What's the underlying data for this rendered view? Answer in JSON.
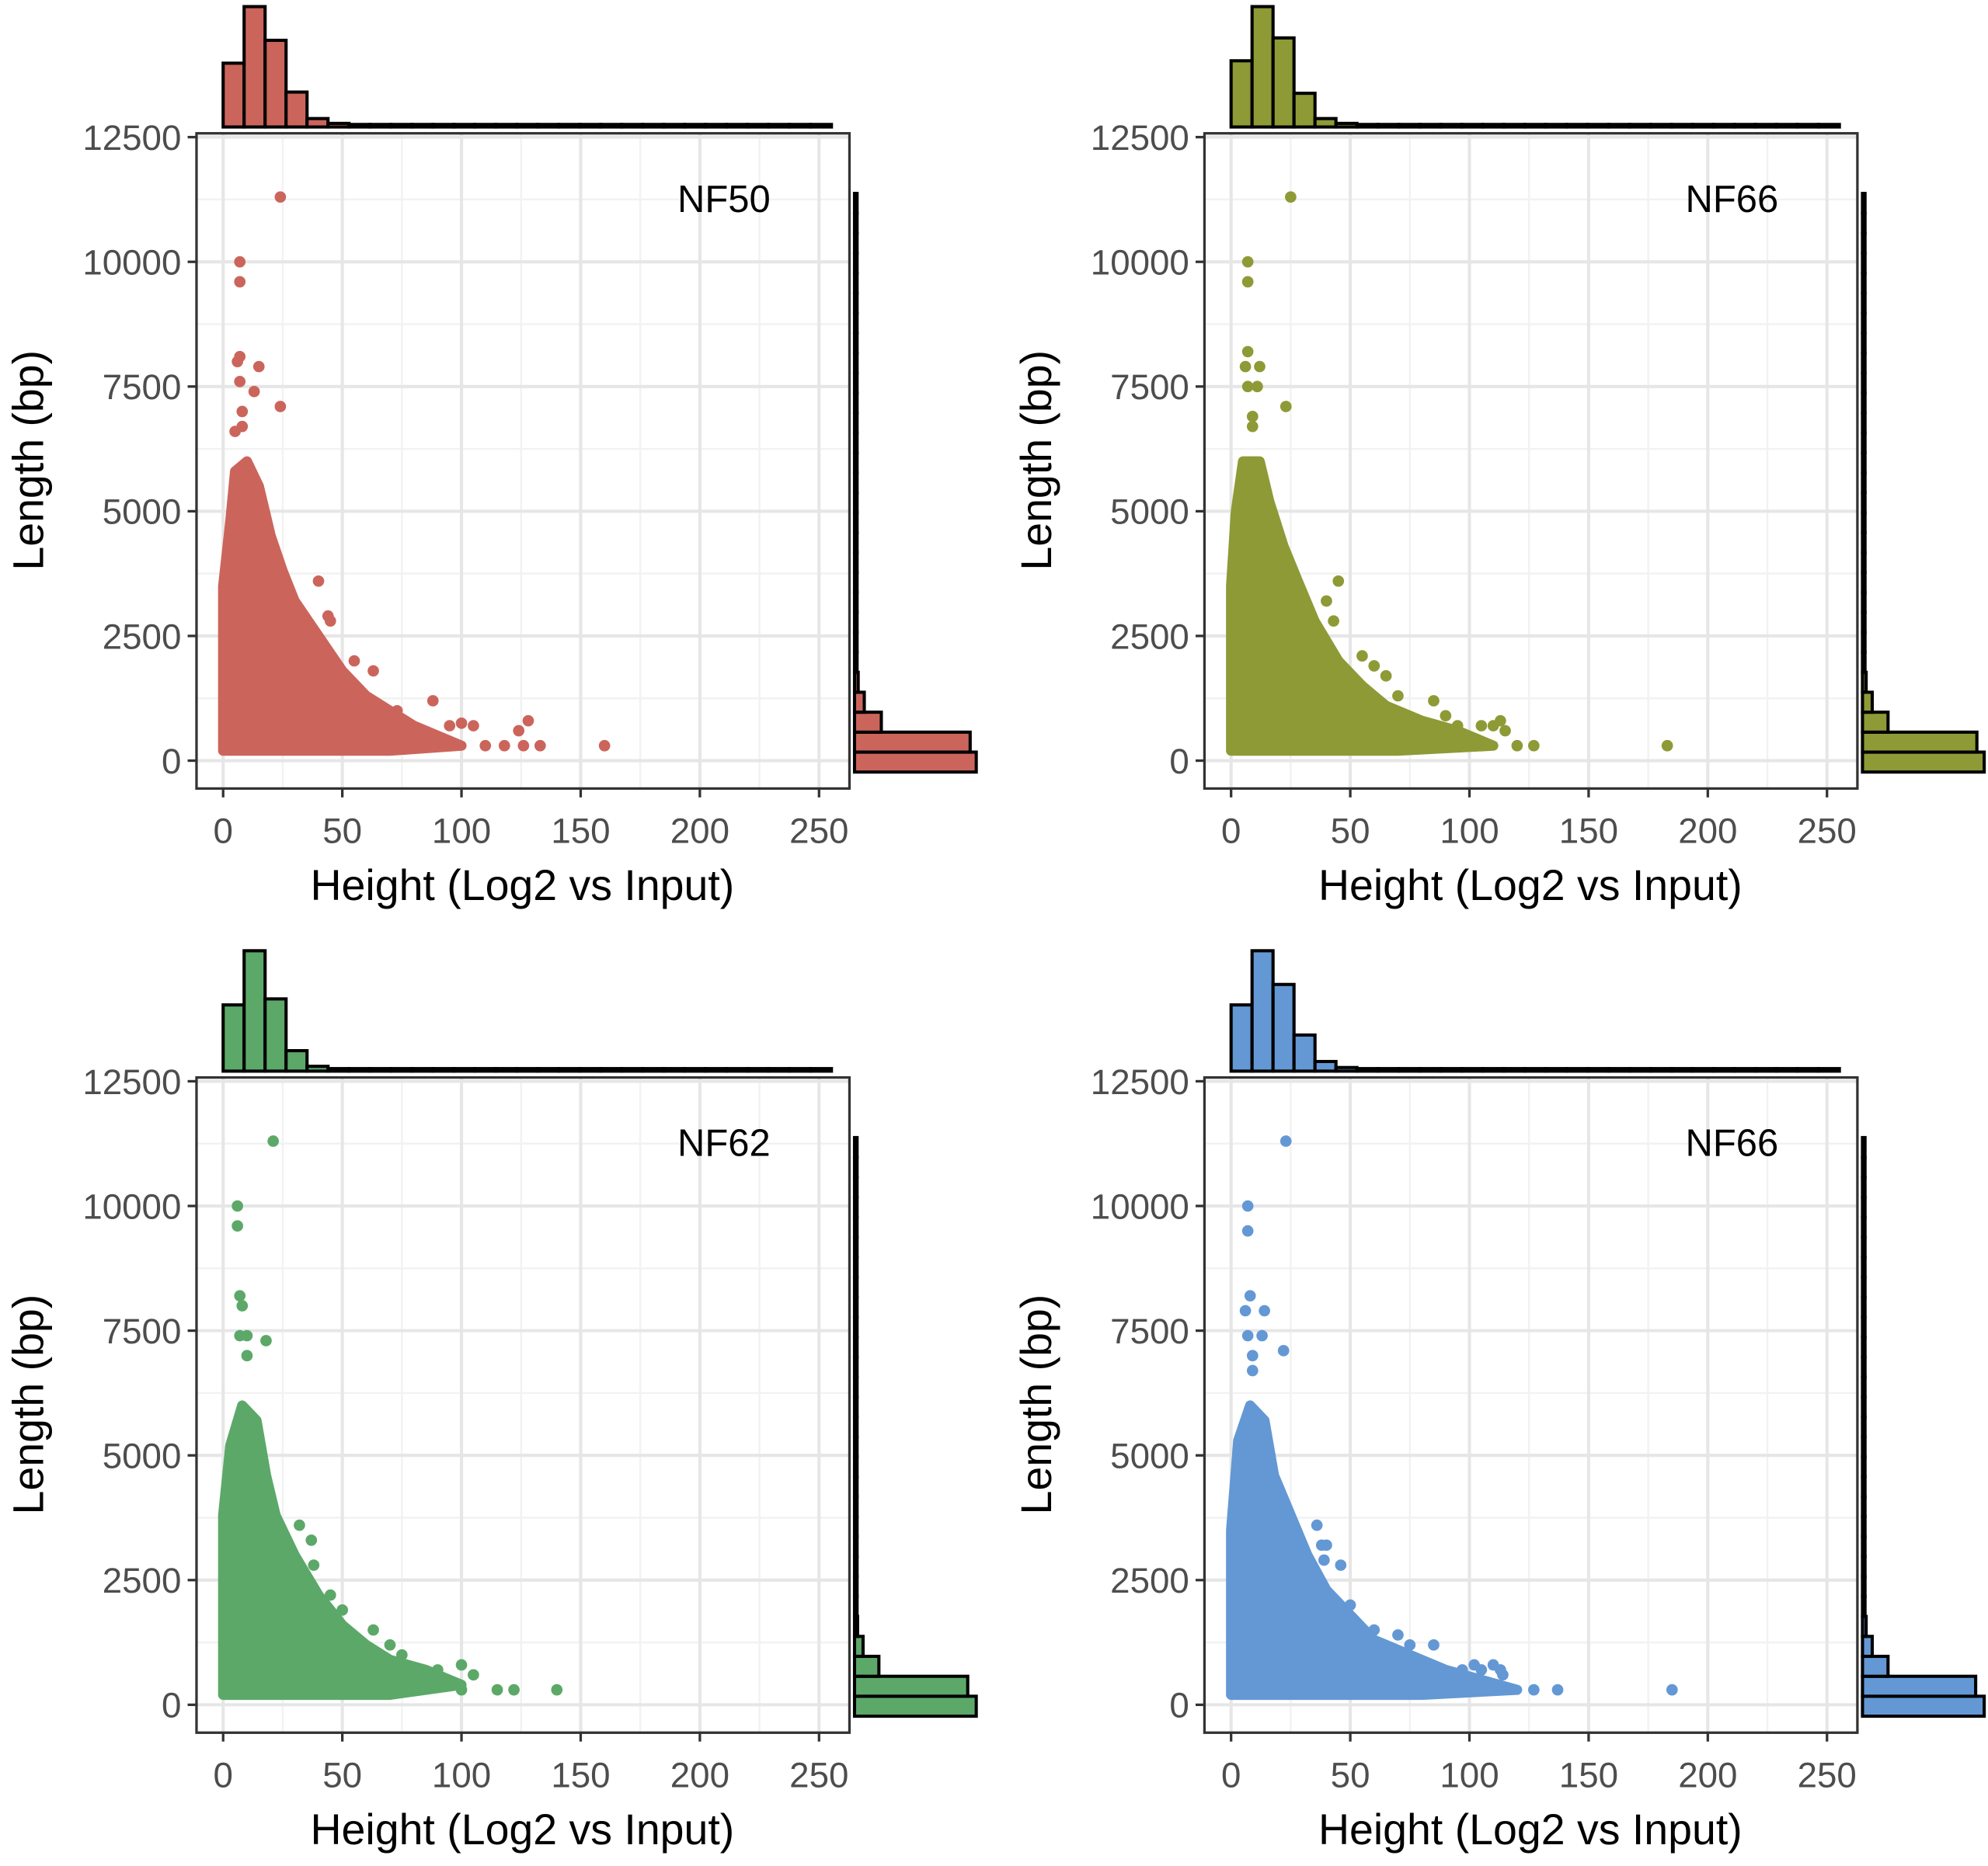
{
  "chart_data": [
    {
      "type": "scatter",
      "panel_label": "NF50",
      "color": "#CB655C",
      "xlabel": "Height (Log2 vs Input)",
      "ylabel": "Length (bp)",
      "xlim": [
        0,
        250
      ],
      "ylim": [
        0,
        12500
      ],
      "xticks": [
        "0",
        "50",
        "100",
        "150",
        "200",
        "250"
      ],
      "yticks": [
        "0",
        "2500",
        "5000",
        "7500",
        "10000",
        "12500"
      ],
      "grid": true,
      "dense_cloud": [
        [
          0,
          200
        ],
        [
          0,
          3500
        ],
        [
          3,
          4800
        ],
        [
          5,
          5800
        ],
        [
          10,
          6000
        ],
        [
          15,
          5500
        ],
        [
          20,
          4500
        ],
        [
          25,
          3800
        ],
        [
          30,
          3200
        ],
        [
          40,
          2500
        ],
        [
          50,
          1800
        ],
        [
          60,
          1300
        ],
        [
          70,
          1000
        ],
        [
          80,
          700
        ],
        [
          90,
          500
        ],
        [
          100,
          300
        ],
        [
          70,
          200
        ]
      ],
      "points": [
        [
          24,
          11300
        ],
        [
          7,
          10000
        ],
        [
          7,
          9600
        ],
        [
          7,
          8100
        ],
        [
          6,
          8000
        ],
        [
          15,
          7900
        ],
        [
          7,
          7600
        ],
        [
          13,
          7400
        ],
        [
          24,
          7100
        ],
        [
          8,
          7000
        ],
        [
          8,
          6700
        ],
        [
          5,
          6600
        ],
        [
          40,
          3600
        ],
        [
          44,
          2900
        ],
        [
          45,
          2800
        ],
        [
          38,
          2200
        ],
        [
          55,
          2000
        ],
        [
          63,
          1800
        ],
        [
          88,
          1200
        ],
        [
          73,
          1000
        ],
        [
          95,
          700
        ],
        [
          100,
          750
        ],
        [
          105,
          700
        ],
        [
          128,
          800
        ],
        [
          124,
          600
        ],
        [
          110,
          300
        ],
        [
          118,
          300
        ],
        [
          126,
          300
        ],
        [
          133,
          300
        ],
        [
          160,
          300
        ]
      ],
      "top_histogram": [
        0.53,
        1,
        0.72,
        0.29,
        0.07,
        0.03,
        0.015,
        0.01,
        0.01,
        0.01,
        0.005,
        0.005,
        0.005,
        0.005,
        0.005,
        0.005,
        0.005,
        0.005,
        0.005,
        0.005,
        0.005,
        0.005,
        0.005,
        0.005,
        0.005,
        0.005,
        0.005,
        0.005,
        0.005
      ],
      "right_histogram": [
        1,
        0.95,
        0.22,
        0.08,
        0.03,
        0.015,
        0.01,
        0.01,
        0.008,
        0.006,
        0.005,
        0.005,
        0.005,
        0.005,
        0.005,
        0.005,
        0.005,
        0.005,
        0.005,
        0.005,
        0.005,
        0.005,
        0.005,
        0.005,
        0.005,
        0.005,
        0.005,
        0.005,
        0.005
      ]
    },
    {
      "type": "scatter",
      "panel_label": "NF66",
      "color": "#8E9A36",
      "xlabel": "Height (Log2 vs Input)",
      "ylabel": "Length (bp)",
      "xlim": [
        0,
        250
      ],
      "ylim": [
        0,
        12500
      ],
      "xticks": [
        "0",
        "50",
        "100",
        "150",
        "200",
        "250"
      ],
      "yticks": [
        "0",
        "2500",
        "5000",
        "7500",
        "10000",
        "12500"
      ],
      "grid": true,
      "dense_cloud": [
        [
          0,
          200
        ],
        [
          0,
          3500
        ],
        [
          2,
          5000
        ],
        [
          5,
          6000
        ],
        [
          12,
          6000
        ],
        [
          16,
          5200
        ],
        [
          22,
          4300
        ],
        [
          28,
          3600
        ],
        [
          35,
          2800
        ],
        [
          45,
          2000
        ],
        [
          55,
          1500
        ],
        [
          65,
          1100
        ],
        [
          80,
          800
        ],
        [
          95,
          600
        ],
        [
          110,
          300
        ],
        [
          70,
          200
        ]
      ],
      "points": [
        [
          25,
          11300
        ],
        [
          7,
          10000
        ],
        [
          7,
          9600
        ],
        [
          7,
          8200
        ],
        [
          6,
          7900
        ],
        [
          12,
          7900
        ],
        [
          7,
          7500
        ],
        [
          11,
          7500
        ],
        [
          23,
          7100
        ],
        [
          9,
          6900
        ],
        [
          9,
          6700
        ],
        [
          45,
          3600
        ],
        [
          40,
          3200
        ],
        [
          43,
          2800
        ],
        [
          55,
          2100
        ],
        [
          60,
          1900
        ],
        [
          65,
          1700
        ],
        [
          70,
          1300
        ],
        [
          85,
          1200
        ],
        [
          90,
          900
        ],
        [
          95,
          700
        ],
        [
          105,
          700
        ],
        [
          110,
          700
        ],
        [
          113,
          800
        ],
        [
          115,
          600
        ],
        [
          120,
          300
        ],
        [
          127,
          300
        ],
        [
          183,
          300
        ]
      ],
      "top_histogram": [
        0.55,
        1,
        0.74,
        0.28,
        0.07,
        0.03,
        0.015,
        0.01,
        0.01,
        0.01,
        0.005,
        0.005,
        0.005,
        0.005,
        0.005,
        0.005,
        0.005,
        0.005,
        0.005,
        0.005,
        0.005,
        0.005,
        0.005,
        0.005,
        0.005,
        0.005,
        0.005,
        0.005,
        0.005
      ],
      "right_histogram": [
        1,
        0.94,
        0.21,
        0.08,
        0.03,
        0.015,
        0.01,
        0.01,
        0.008,
        0.006,
        0.005,
        0.005,
        0.005,
        0.005,
        0.005,
        0.005,
        0.005,
        0.005,
        0.005,
        0.005,
        0.005,
        0.005,
        0.005,
        0.005,
        0.005,
        0.005,
        0.005,
        0.005,
        0.005
      ]
    },
    {
      "type": "scatter",
      "panel_label": "NF62",
      "color": "#5CA868",
      "xlabel": "Height (Log2 vs Input)",
      "ylabel": "Length (bp)",
      "xlim": [
        0,
        250
      ],
      "ylim": [
        0,
        12500
      ],
      "xticks": [
        "0",
        "50",
        "100",
        "150",
        "200",
        "250"
      ],
      "yticks": [
        "0",
        "2500",
        "5000",
        "7500",
        "10000",
        "12500"
      ],
      "grid": true,
      "dense_cloud": [
        [
          0,
          200
        ],
        [
          0,
          3800
        ],
        [
          3,
          5200
        ],
        [
          8,
          6000
        ],
        [
          14,
          5700
        ],
        [
          18,
          4600
        ],
        [
          22,
          3800
        ],
        [
          30,
          3000
        ],
        [
          40,
          2200
        ],
        [
          50,
          1600
        ],
        [
          60,
          1200
        ],
        [
          70,
          900
        ],
        [
          85,
          700
        ],
        [
          100,
          400
        ],
        [
          70,
          200
        ]
      ],
      "points": [
        [
          21,
          11300
        ],
        [
          6,
          10000
        ],
        [
          6,
          9600
        ],
        [
          7,
          8200
        ],
        [
          8,
          8000
        ],
        [
          7,
          7400
        ],
        [
          10,
          7400
        ],
        [
          18,
          7300
        ],
        [
          10,
          7000
        ],
        [
          32,
          3600
        ],
        [
          37,
          3300
        ],
        [
          38,
          2800
        ],
        [
          45,
          2200
        ],
        [
          50,
          1900
        ],
        [
          63,
          1500
        ],
        [
          70,
          1200
        ],
        [
          75,
          1000
        ],
        [
          90,
          700
        ],
        [
          100,
          800
        ],
        [
          105,
          600
        ],
        [
          100,
          300
        ],
        [
          115,
          300
        ],
        [
          122,
          300
        ],
        [
          140,
          300
        ]
      ],
      "top_histogram": [
        0.55,
        1,
        0.6,
        0.17,
        0.04,
        0.02,
        0.01,
        0.01,
        0.005,
        0.005,
        0.005,
        0.005,
        0.005,
        0.005,
        0.005,
        0.005,
        0.005,
        0.005,
        0.005,
        0.005,
        0.005,
        0.005,
        0.005,
        0.005,
        0.005,
        0.005,
        0.005,
        0.005,
        0.005
      ],
      "right_histogram": [
        1,
        0.93,
        0.2,
        0.07,
        0.025,
        0.012,
        0.01,
        0.008,
        0.006,
        0.005,
        0.005,
        0.005,
        0.005,
        0.005,
        0.005,
        0.005,
        0.005,
        0.005,
        0.005,
        0.005,
        0.005,
        0.005,
        0.005,
        0.005,
        0.005,
        0.005,
        0.005,
        0.005,
        0.005
      ]
    },
    {
      "type": "scatter",
      "panel_label": "NF66",
      "color": "#6398D5",
      "xlabel": "Height (Log2 vs Input)",
      "ylabel": "Length (bp)",
      "xlim": [
        0,
        250
      ],
      "ylim": [
        0,
        12500
      ],
      "xticks": [
        "0",
        "50",
        "100",
        "150",
        "200",
        "250"
      ],
      "yticks": [
        "0",
        "2500",
        "5000",
        "7500",
        "10000",
        "12500"
      ],
      "grid": true,
      "dense_cloud": [
        [
          0,
          200
        ],
        [
          0,
          3500
        ],
        [
          3,
          5300
        ],
        [
          8,
          6000
        ],
        [
          14,
          5700
        ],
        [
          18,
          4600
        ],
        [
          25,
          3800
        ],
        [
          32,
          3000
        ],
        [
          40,
          2300
        ],
        [
          50,
          1800
        ],
        [
          60,
          1300
        ],
        [
          75,
          1000
        ],
        [
          90,
          700
        ],
        [
          105,
          500
        ],
        [
          120,
          300
        ],
        [
          80,
          200
        ]
      ],
      "points": [
        [
          23,
          11300
        ],
        [
          7,
          10000
        ],
        [
          7,
          9500
        ],
        [
          8,
          8200
        ],
        [
          6,
          7900
        ],
        [
          14,
          7900
        ],
        [
          7,
          7400
        ],
        [
          13,
          7400
        ],
        [
          22,
          7100
        ],
        [
          9,
          7000
        ],
        [
          9,
          6700
        ],
        [
          36,
          3600
        ],
        [
          38,
          3200
        ],
        [
          40,
          3200
        ],
        [
          39,
          2900
        ],
        [
          46,
          2800
        ],
        [
          50,
          2000
        ],
        [
          60,
          1500
        ],
        [
          70,
          1400
        ],
        [
          75,
          1200
        ],
        [
          85,
          1200
        ],
        [
          97,
          700
        ],
        [
          102,
          800
        ],
        [
          105,
          700
        ],
        [
          110,
          800
        ],
        [
          113,
          700
        ],
        [
          114,
          600
        ],
        [
          127,
          300
        ],
        [
          137,
          300
        ],
        [
          185,
          300
        ]
      ],
      "top_histogram": [
        0.55,
        1,
        0.72,
        0.3,
        0.08,
        0.03,
        0.015,
        0.01,
        0.01,
        0.01,
        0.005,
        0.005,
        0.005,
        0.005,
        0.005,
        0.005,
        0.005,
        0.005,
        0.005,
        0.005,
        0.005,
        0.005,
        0.005,
        0.005,
        0.005,
        0.005,
        0.005,
        0.005,
        0.005
      ],
      "right_histogram": [
        1,
        0.93,
        0.21,
        0.08,
        0.03,
        0.015,
        0.01,
        0.01,
        0.008,
        0.006,
        0.005,
        0.005,
        0.005,
        0.005,
        0.005,
        0.005,
        0.005,
        0.005,
        0.005,
        0.005,
        0.005,
        0.005,
        0.005,
        0.005,
        0.005,
        0.005,
        0.005,
        0.005,
        0.005
      ]
    }
  ]
}
